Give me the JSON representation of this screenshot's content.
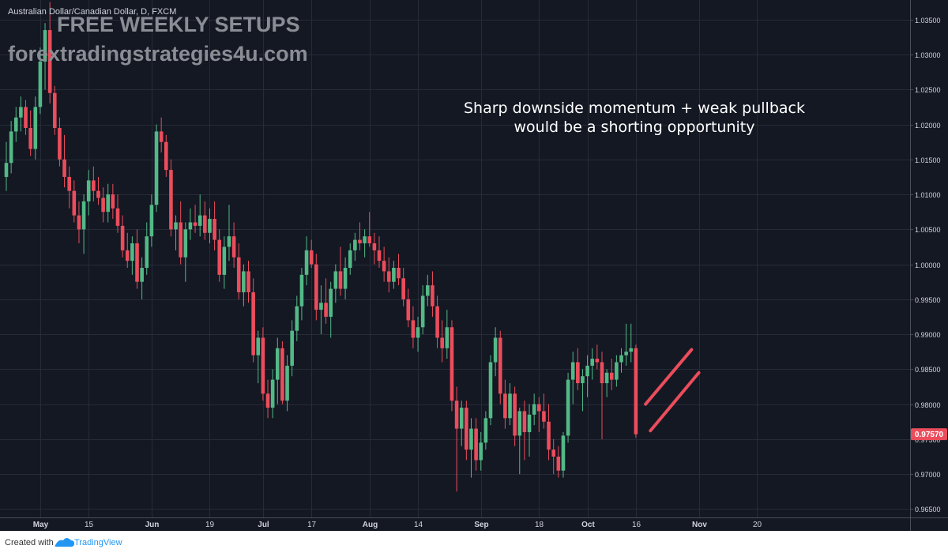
{
  "header": {
    "symbol": "Australian Dollar/Canadian Dollar, D, FXCM"
  },
  "watermark": {
    "line1": "FREE WEEKLY SETUPS",
    "line2": "forextradingstrategies4u.com"
  },
  "annotation": {
    "line1": "Sharp downside momentum + weak pullback",
    "line2": "would be a shorting opportunity"
  },
  "footer": {
    "created_with": "Created with",
    "brand": "TradingView"
  },
  "colors": {
    "background": "#141823",
    "grid": "#262b38",
    "up": "#53b987",
    "down": "#eb4d5c",
    "price_tag": "#eb4d5c",
    "projection": "#eb4d5c",
    "axis_text": "#d1d4dc",
    "watermark": "#8a8d94"
  },
  "chart_data": {
    "type": "candlestick",
    "y_ticks": [
      "1.03500",
      "1.03000",
      "1.02500",
      "1.02000",
      "1.01500",
      "1.01000",
      "1.00500",
      "1.00000",
      "0.99500",
      "0.99000",
      "0.98500",
      "0.98000",
      "0.97500",
      "0.97000",
      "0.96500"
    ],
    "y_tick_values": [
      1.035,
      1.03,
      1.025,
      1.02,
      1.015,
      1.01,
      1.005,
      1.0,
      0.995,
      0.99,
      0.985,
      0.98,
      0.975,
      0.97,
      0.965
    ],
    "ylim": [
      0.9638,
      1.0378
    ],
    "x_ticks": [
      {
        "label": "May",
        "index": 7,
        "bold": true
      },
      {
        "label": "15",
        "index": 17,
        "bold": false
      },
      {
        "label": "Jun",
        "index": 30,
        "bold": true
      },
      {
        "label": "19",
        "index": 42,
        "bold": false
      },
      {
        "label": "Jul",
        "index": 53,
        "bold": true
      },
      {
        "label": "17",
        "index": 63,
        "bold": false
      },
      {
        "label": "Aug",
        "index": 75,
        "bold": true
      },
      {
        "label": "14",
        "index": 85,
        "bold": false
      },
      {
        "label": "Sep",
        "index": 98,
        "bold": true
      },
      {
        "label": "18",
        "index": 110,
        "bold": false
      },
      {
        "label": "Oct",
        "index": 120,
        "bold": true
      },
      {
        "label": "16",
        "index": 130,
        "bold": false
      },
      {
        "label": "Nov",
        "index": 143,
        "bold": true
      },
      {
        "label": "20",
        "index": 155,
        "bold": false
      }
    ],
    "last_price": "0.97570",
    "last_price_value": 0.9757,
    "ohlc": [
      [
        1.0125,
        1.0175,
        1.0105,
        1.0145
      ],
      [
        1.0145,
        1.0205,
        1.013,
        1.019
      ],
      [
        1.019,
        1.0225,
        1.0175,
        1.021
      ],
      [
        1.021,
        1.024,
        1.019,
        1.0225
      ],
      [
        1.0225,
        1.0235,
        1.0185,
        1.0195
      ],
      [
        1.0195,
        1.022,
        1.0155,
        1.0165
      ],
      [
        1.0165,
        1.024,
        1.015,
        1.0225
      ],
      [
        1.0225,
        1.031,
        1.0215,
        1.029
      ],
      [
        1.029,
        1.0345,
        1.025,
        1.0335
      ],
      [
        1.0335,
        1.0375,
        1.023,
        1.0245
      ],
      [
        1.0245,
        1.0255,
        1.0185,
        1.0195
      ],
      [
        1.0195,
        1.021,
        1.014,
        1.015
      ],
      [
        1.015,
        1.0185,
        1.011,
        1.0125
      ],
      [
        1.0125,
        1.014,
        1.008,
        1.0105
      ],
      [
        1.0105,
        1.012,
        1.006,
        1.007
      ],
      [
        1.007,
        1.009,
        1.003,
        1.005
      ],
      [
        1.005,
        1.01,
        1.0015,
        1.009
      ],
      [
        1.009,
        1.0135,
        1.007,
        1.012
      ],
      [
        1.012,
        1.014,
        1.009,
        1.0105
      ],
      [
        1.0105,
        1.0125,
        1.0085,
        1.0095
      ],
      [
        1.0095,
        1.011,
        1.006,
        1.0075
      ],
      [
        1.0075,
        1.0115,
        1.006,
        1.01
      ],
      [
        1.01,
        1.0115,
        1.0065,
        1.008
      ],
      [
        1.008,
        1.01,
        1.0045,
        1.0055
      ],
      [
        1.0055,
        1.007,
        1.001,
        1.002
      ],
      [
        1.002,
        1.0045,
        0.9995,
        1.0005
      ],
      [
        1.0005,
        1.004,
        0.9985,
        1.003
      ],
      [
        1.003,
        1.005,
        0.9965,
        0.9975
      ],
      [
        0.9975,
        1.001,
        0.995,
        0.9995
      ],
      [
        0.9995,
        1.006,
        0.9985,
        1.004
      ],
      [
        1.004,
        1.01,
        1.0025,
        1.0085
      ],
      [
        1.0085,
        1.02,
        1.0075,
        1.019
      ],
      [
        1.019,
        1.021,
        1.016,
        1.0175
      ],
      [
        1.0175,
        1.0185,
        1.0125,
        1.0135
      ],
      [
        1.0135,
        1.015,
        1.004,
        1.005
      ],
      [
        1.005,
        1.007,
        1.002,
        1.006
      ],
      [
        1.006,
        1.009,
        1.0,
        1.001
      ],
      [
        1.001,
        1.006,
        0.9975,
        1.005
      ],
      [
        1.005,
        1.008,
        1.0035,
        1.006
      ],
      [
        1.006,
        1.0085,
        1.0045,
        1.0055
      ],
      [
        1.0055,
        1.01,
        1.004,
        1.007
      ],
      [
        1.007,
        1.009,
        1.0035,
        1.0045
      ],
      [
        1.0045,
        1.008,
        1.003,
        1.0065
      ],
      [
        1.0065,
        1.009,
        1.002,
        1.0035
      ],
      [
        1.0035,
        1.005,
        0.9975,
        0.9985
      ],
      [
        0.9985,
        1.004,
        0.9965,
        1.0025
      ],
      [
        1.0025,
        1.0085,
        1.0005,
        1.004
      ],
      [
        1.004,
        1.006,
        0.9995,
        1.001
      ],
      [
        1.001,
        1.003,
        0.995,
        0.996
      ],
      [
        0.996,
        1.0,
        0.994,
        0.999
      ],
      [
        0.999,
        1.0005,
        0.9945,
        0.996
      ],
      [
        0.996,
        0.998,
        0.986,
        0.987
      ],
      [
        0.987,
        0.9905,
        0.983,
        0.9895
      ],
      [
        0.9895,
        0.991,
        0.9805,
        0.9815
      ],
      [
        0.9815,
        0.9835,
        0.978,
        0.9795
      ],
      [
        0.9795,
        0.985,
        0.978,
        0.9835
      ],
      [
        0.9835,
        0.9895,
        0.98,
        0.988
      ],
      [
        0.988,
        0.989,
        0.98,
        0.9805
      ],
      [
        0.9805,
        0.987,
        0.979,
        0.9855
      ],
      [
        0.9855,
        0.992,
        0.984,
        0.9905
      ],
      [
        0.9905,
        0.9955,
        0.989,
        0.994
      ],
      [
        0.994,
        0.9995,
        0.992,
        0.9985
      ],
      [
        0.9985,
        1.004,
        0.997,
        1.002
      ],
      [
        1.002,
        1.0035,
        0.9995,
        1.0
      ],
      [
        1.0,
        1.0015,
        0.992,
        0.9935
      ],
      [
        0.9935,
        0.997,
        0.99,
        0.9945
      ],
      [
        0.9945,
        0.998,
        0.9915,
        0.9925
      ],
      [
        0.9925,
        0.9975,
        0.9895,
        0.9965
      ],
      [
        0.9965,
        1.0,
        0.9945,
        0.999
      ],
      [
        0.999,
        1.0025,
        0.9955,
        0.9965
      ],
      [
        0.9965,
        1.001,
        0.995,
        0.9995
      ],
      [
        0.9995,
        1.003,
        0.9985,
        1.002
      ],
      [
        1.002,
        1.0045,
        1.0005,
        1.0035
      ],
      [
        1.0035,
        1.006,
        1.002,
        1.003
      ],
      [
        1.003,
        1.005,
        1.001,
        1.004
      ],
      [
        1.004,
        1.0075,
        1.0025,
        1.003
      ],
      [
        1.003,
        1.0045,
        1.0,
        1.002
      ],
      [
        1.002,
        1.004,
        0.9995,
        1.0005
      ],
      [
        1.0005,
        1.0025,
        0.9975,
        0.999
      ],
      [
        0.999,
        1.001,
        0.996,
        0.9975
      ],
      [
        0.9975,
        1.0005,
        0.9965,
        0.9995
      ],
      [
        0.9995,
        1.0015,
        0.997,
        0.998
      ],
      [
        0.998,
        0.9995,
        0.994,
        0.995
      ],
      [
        0.995,
        0.9965,
        0.991,
        0.992
      ],
      [
        0.992,
        0.994,
        0.988,
        0.9895
      ],
      [
        0.9895,
        0.9925,
        0.9875,
        0.991
      ],
      [
        0.991,
        0.997,
        0.99,
        0.9955
      ],
      [
        0.9955,
        0.9985,
        0.994,
        0.997
      ],
      [
        0.997,
        0.999,
        0.9925,
        0.994
      ],
      [
        0.994,
        0.9955,
        0.988,
        0.9895
      ],
      [
        0.9895,
        0.992,
        0.986,
        0.988
      ],
      [
        0.988,
        0.9935,
        0.9865,
        0.991
      ],
      [
        0.991,
        0.992,
        0.979,
        0.9805
      ],
      [
        0.9805,
        0.9825,
        0.9675,
        0.9765
      ],
      [
        0.9765,
        0.9805,
        0.974,
        0.9795
      ],
      [
        0.9795,
        0.9805,
        0.972,
        0.9735
      ],
      [
        0.9735,
        0.978,
        0.9695,
        0.9765
      ],
      [
        0.9765,
        0.978,
        0.9705,
        0.972
      ],
      [
        0.972,
        0.976,
        0.9705,
        0.9745
      ],
      [
        0.9745,
        0.979,
        0.9735,
        0.978
      ],
      [
        0.978,
        0.987,
        0.977,
        0.986
      ],
      [
        0.986,
        0.991,
        0.984,
        0.9895
      ],
      [
        0.9895,
        0.9905,
        0.98,
        0.9815
      ],
      [
        0.9815,
        0.9835,
        0.9765,
        0.978
      ],
      [
        0.978,
        0.983,
        0.977,
        0.9815
      ],
      [
        0.9815,
        0.9825,
        0.974,
        0.9755
      ],
      [
        0.9755,
        0.9795,
        0.97,
        0.979
      ],
      [
        0.979,
        0.9805,
        0.972,
        0.976
      ],
      [
        0.976,
        0.98,
        0.9725,
        0.9785
      ],
      [
        0.9785,
        0.9815,
        0.977,
        0.98
      ],
      [
        0.98,
        0.981,
        0.976,
        0.979
      ],
      [
        0.979,
        0.9815,
        0.9765,
        0.9775
      ],
      [
        0.9775,
        0.98,
        0.972,
        0.9735
      ],
      [
        0.9735,
        0.975,
        0.97,
        0.9725
      ],
      [
        0.9725,
        0.974,
        0.9695,
        0.9705
      ],
      [
        0.9705,
        0.976,
        0.9695,
        0.9755
      ],
      [
        0.9755,
        0.9845,
        0.9745,
        0.9835
      ],
      [
        0.9835,
        0.9875,
        0.98,
        0.986
      ],
      [
        0.986,
        0.988,
        0.982,
        0.983
      ],
      [
        0.983,
        0.985,
        0.979,
        0.984
      ],
      [
        0.984,
        0.987,
        0.981,
        0.9855
      ],
      [
        0.9855,
        0.988,
        0.9835,
        0.9865
      ],
      [
        0.9865,
        0.9885,
        0.985,
        0.986
      ],
      [
        0.986,
        0.9875,
        0.975,
        0.983
      ],
      [
        0.983,
        0.985,
        0.981,
        0.9845
      ],
      [
        0.9845,
        0.9865,
        0.982,
        0.9835
      ],
      [
        0.9835,
        0.987,
        0.9825,
        0.986
      ],
      [
        0.986,
        0.988,
        0.9845,
        0.987
      ],
      [
        0.987,
        0.9915,
        0.9855,
        0.9875
      ],
      [
        0.9875,
        0.9915,
        0.986,
        0.988
      ],
      [
        0.988,
        0.9885,
        0.9752,
        0.9757
      ]
    ],
    "projection_lines": [
      {
        "x_start": 132,
        "y_start": 0.98,
        "x_end": 141.5,
        "y_end": 0.9878
      },
      {
        "x_start": 133,
        "y_start": 0.9762,
        "x_end": 143.0,
        "y_end": 0.9845
      }
    ]
  }
}
